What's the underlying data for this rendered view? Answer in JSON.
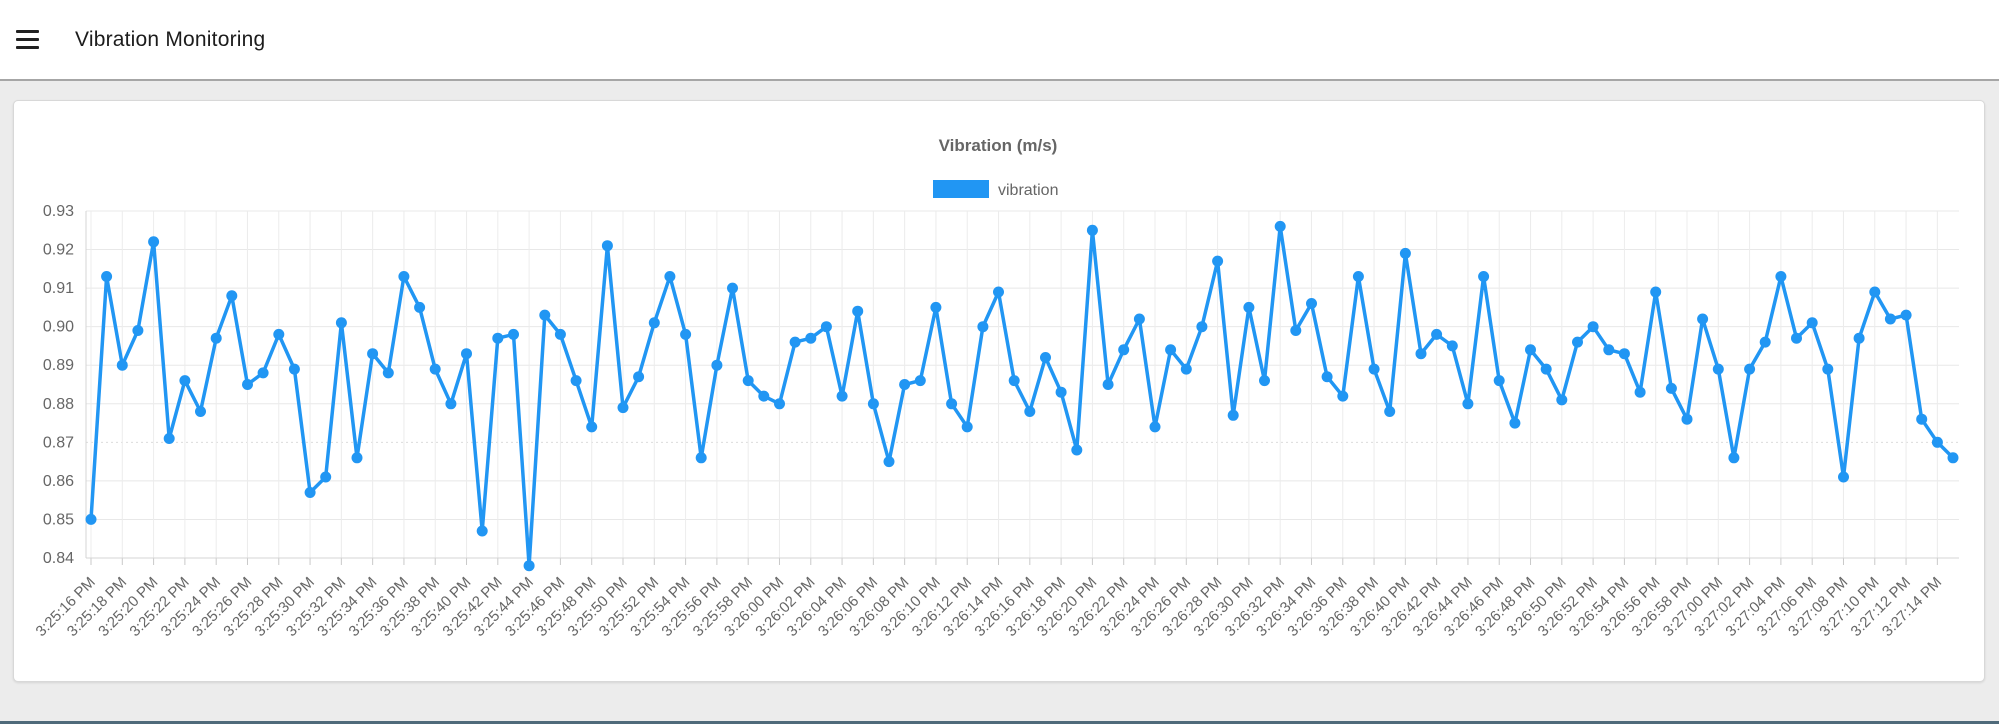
{
  "header": {
    "title": "Vibration Monitoring"
  },
  "chart_data": {
    "type": "line",
    "title": "Vibration (m/s)",
    "legend": [
      {
        "label": "vibration",
        "color": "#2196F3"
      }
    ],
    "legend_position": "top",
    "grid": true,
    "dashed_gridline_value": 0.87,
    "ylim": [
      0.84,
      0.93
    ],
    "y_ticks": [
      "0.93",
      "0.92",
      "0.91",
      "0.90",
      "0.89",
      "0.88",
      "0.87",
      "0.86",
      "0.85",
      "0.84"
    ],
    "points_per_label": 2,
    "x_labels": [
      "3:25:16 PM",
      "3:25:18 PM",
      "3:25:20 PM",
      "3:25:22 PM",
      "3:25:24 PM",
      "3:25:26 PM",
      "3:25:28 PM",
      "3:25:30 PM",
      "3:25:32 PM",
      "3:25:34 PM",
      "3:25:36 PM",
      "3:25:38 PM",
      "3:25:40 PM",
      "3:25:42 PM",
      "3:25:44 PM",
      "3:25:46 PM",
      "3:25:48 PM",
      "3:25:50 PM",
      "3:25:52 PM",
      "3:25:54 PM",
      "3:25:56 PM",
      "3:25:58 PM",
      "3:26:00 PM",
      "3:26:02 PM",
      "3:26:04 PM",
      "3:26:06 PM",
      "3:26:08 PM",
      "3:26:10 PM",
      "3:26:12 PM",
      "3:26:14 PM",
      "3:26:16 PM",
      "3:26:18 PM",
      "3:26:20 PM",
      "3:26:22 PM",
      "3:26:24 PM",
      "3:26:26 PM",
      "3:26:28 PM",
      "3:26:30 PM",
      "3:26:32 PM",
      "3:26:34 PM",
      "3:26:36 PM",
      "3:26:38 PM",
      "3:26:40 PM",
      "3:26:42 PM",
      "3:26:44 PM",
      "3:26:46 PM",
      "3:26:48 PM",
      "3:26:50 PM",
      "3:26:52 PM",
      "3:26:54 PM",
      "3:26:56 PM",
      "3:26:58 PM",
      "3:27:00 PM",
      "3:27:02 PM",
      "3:27:04 PM",
      "3:27:06 PM",
      "3:27:08 PM",
      "3:27:10 PM",
      "3:27:12 PM",
      "3:27:14 PM"
    ],
    "values": [
      0.85,
      0.913,
      0.89,
      0.899,
      0.922,
      0.871,
      0.886,
      0.878,
      0.897,
      0.908,
      0.885,
      0.888,
      0.898,
      0.889,
      0.857,
      0.861,
      0.901,
      0.866,
      0.893,
      0.888,
      0.913,
      0.905,
      0.889,
      0.88,
      0.893,
      0.847,
      0.897,
      0.898,
      0.838,
      0.903,
      0.898,
      0.886,
      0.874,
      0.921,
      0.879,
      0.887,
      0.901,
      0.913,
      0.898,
      0.866,
      0.89,
      0.91,
      0.886,
      0.882,
      0.88,
      0.896,
      0.897,
      0.9,
      0.882,
      0.904,
      0.88,
      0.865,
      0.885,
      0.886,
      0.905,
      0.88,
      0.874,
      0.9,
      0.909,
      0.886,
      0.878,
      0.892,
      0.883,
      0.868,
      0.925,
      0.885,
      0.894,
      0.902,
      0.874,
      0.894,
      0.889,
      0.9,
      0.917,
      0.877,
      0.905,
      0.886,
      0.926,
      0.899,
      0.906,
      0.887,
      0.882,
      0.913,
      0.889,
      0.878,
      0.919,
      0.893,
      0.898,
      0.895,
      0.88,
      0.913,
      0.886,
      0.875,
      0.894,
      0.889,
      0.881,
      0.896,
      0.9,
      0.894,
      0.893,
      0.883,
      0.909,
      0.884,
      0.876,
      0.902,
      0.889,
      0.866,
      0.889,
      0.896,
      0.913,
      0.897,
      0.901,
      0.889,
      0.861,
      0.897,
      0.909,
      0.902,
      0.903,
      0.876,
      0.87,
      0.866
    ],
    "colors": {
      "line": "#2196F3",
      "grid": "#e8e8e8",
      "grid_vertical": "#ececec",
      "dashed_grid": "#dcdcdc",
      "axis_border": "#d4d4d4",
      "tick_mark": "#c9c9c9",
      "axis_text": "#666666"
    }
  },
  "page": {
    "background": "#ececec",
    "header_background": "#ffffff",
    "bottom_bar_color": "#4f6a7a"
  }
}
